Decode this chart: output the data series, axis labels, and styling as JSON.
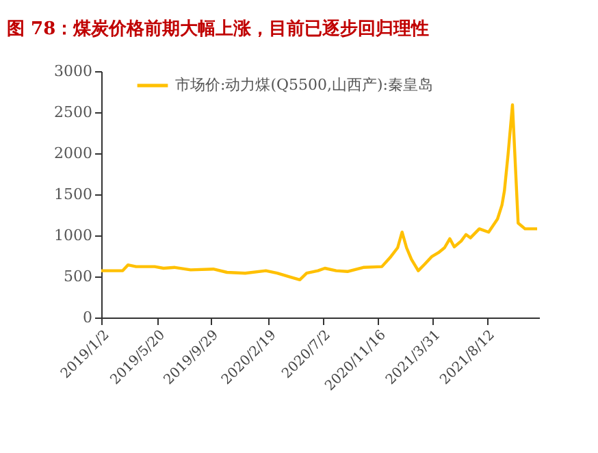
{
  "chart_data": {
    "type": "line",
    "title": "图 78：煤炭价格前期大幅上涨，目前已逐步回归理性",
    "x": [
      "2019-01-02",
      "2019-02-24",
      "2019-03-09",
      "2019-03-29",
      "2019-05-14",
      "2019-06-05",
      "2019-07-03",
      "2019-08-11",
      "2019-10-06",
      "2019-11-09",
      "2019-12-24",
      "2020-02-13",
      "2020-03-12",
      "2020-04-15",
      "2020-05-07",
      "2020-05-24",
      "2020-06-21",
      "2020-07-08",
      "2020-08-05",
      "2020-09-02",
      "2020-10-11",
      "2020-11-26",
      "2020-12-18",
      "2021-01-04",
      "2021-01-15",
      "2021-01-26",
      "2021-02-07",
      "2021-02-24",
      "2021-03-12",
      "2021-03-29",
      "2021-04-15",
      "2021-04-30",
      "2021-05-13",
      "2021-05-24",
      "2021-06-10",
      "2021-06-22",
      "2021-07-03",
      "2021-07-25",
      "2021-08-17",
      "2021-09-08",
      "2021-09-19",
      "2021-09-25",
      "2021-10-04",
      "2021-10-15",
      "2021-10-29",
      "2021-11-15",
      "2021-12-15"
    ],
    "series": [
      {
        "name": "市场价:动力煤(Q5500,山西产):秦皇岛",
        "color": "#ffc000",
        "values": [
          570,
          570,
          640,
          620,
          620,
          600,
          610,
          580,
          590,
          550,
          540,
          570,
          540,
          490,
          460,
          540,
          570,
          600,
          570,
          560,
          610,
          620,
          740,
          850,
          1040,
          850,
          710,
          570,
          650,
          740,
          790,
          850,
          960,
          860,
          930,
          1010,
          970,
          1080,
          1040,
          1200,
          1370,
          1540,
          1980,
          2590,
          1150,
          1080,
          1080
        ]
      }
    ],
    "xlim": [
      "2019-01-02",
      "2021-12-20"
    ],
    "xticks": [
      {
        "value": "2019-01-02",
        "label": "2019/1/2"
      },
      {
        "value": "2019-05-20",
        "label": "2019/5/20"
      },
      {
        "value": "2019-09-29",
        "label": "2019/9/29"
      },
      {
        "value": "2020-02-19",
        "label": "2020/2/19"
      },
      {
        "value": "2020-07-02",
        "label": "2020/7/2"
      },
      {
        "value": "2020-11-16",
        "label": "2020/11/16"
      },
      {
        "value": "2021-03-31",
        "label": "2021/3/31"
      },
      {
        "value": "2021-08-12",
        "label": "2021/8/12"
      }
    ],
    "ylim": [
      0,
      3000
    ],
    "yticks": [
      0,
      500,
      1000,
      1500,
      2000,
      2500,
      3000
    ],
    "grid": false,
    "legend": "top",
    "marker": "none",
    "line_style": "solid"
  }
}
